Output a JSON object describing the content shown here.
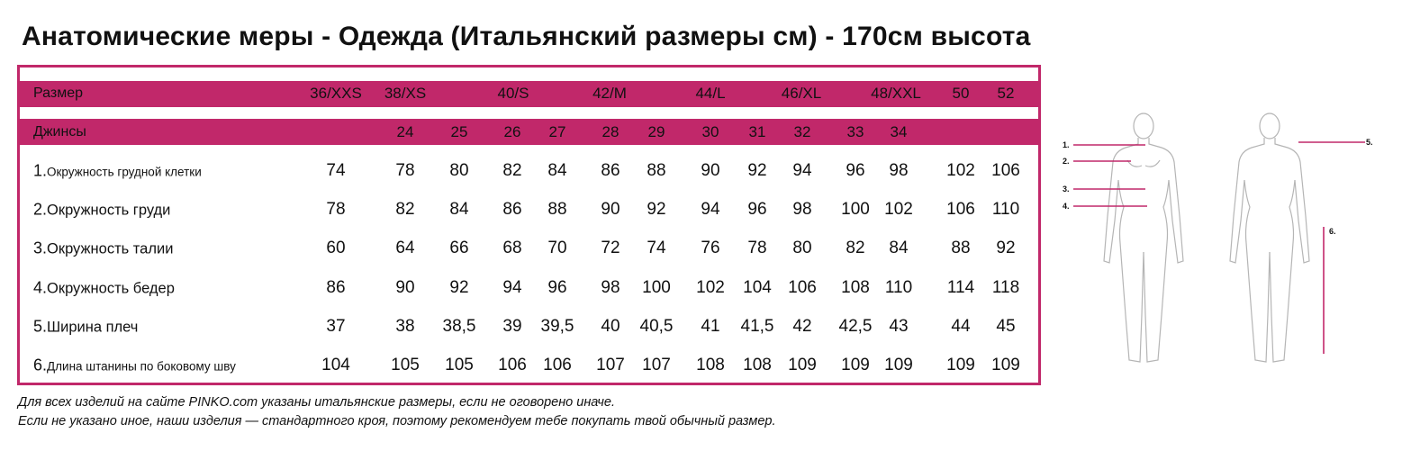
{
  "title": "Анатомические меры - Одежда (Итальянский размеры см) - 170см высота",
  "table": {
    "size_label": "Размер",
    "sizes": [
      "36/XXS",
      "38/XS",
      "40/S",
      "42/M",
      "44/L",
      "46/XL",
      "48/XXL",
      "50",
      "52"
    ],
    "jeans_label": "Джинсы",
    "jeans": [
      "24",
      "25",
      "26",
      "27",
      "28",
      "29",
      "30",
      "31",
      "32",
      "33",
      "34"
    ],
    "rows": [
      {
        "num": "1.",
        "label": "Окружность грудной клетки",
        "small": true,
        "values": [
          "74",
          "78",
          "80",
          "82",
          "84",
          "86",
          "88",
          "90",
          "92",
          "94",
          "96",
          "98",
          "102",
          "106"
        ]
      },
      {
        "num": "2.",
        "label": "Окружность груди",
        "small": false,
        "values": [
          "78",
          "82",
          "84",
          "86",
          "88",
          "90",
          "92",
          "94",
          "96",
          "98",
          "100",
          "102",
          "106",
          "110"
        ]
      },
      {
        "num": "3.",
        "label": "Окружность талии",
        "small": false,
        "values": [
          "60",
          "64",
          "66",
          "68",
          "70",
          "72",
          "74",
          "76",
          "78",
          "80",
          "82",
          "84",
          "88",
          "92"
        ]
      },
      {
        "num": "4.",
        "label": "Окружность бедер",
        "small": false,
        "values": [
          "86",
          "90",
          "92",
          "94",
          "96",
          "98",
          "100",
          "102",
          "104",
          "106",
          "108",
          "110",
          "114",
          "118"
        ]
      },
      {
        "num": "5.",
        "label": "Ширина плеч",
        "small": false,
        "values": [
          "37",
          "38",
          "38,5",
          "39",
          "39,5",
          "40",
          "40,5",
          "41",
          "41,5",
          "42",
          "42,5",
          "43",
          "44",
          "45"
        ]
      },
      {
        "num": "6.",
        "label": "Длина штанины по боковому шву",
        "small": true,
        "values": [
          "104",
          "105",
          "105",
          "106",
          "106",
          "107",
          "107",
          "108",
          "108",
          "109",
          "109",
          "109",
          "109",
          "109"
        ]
      }
    ]
  },
  "notes": [
    "Для всех изделий на сайте PINKO.com указаны итальянские размеры, если не оговорено иначе.",
    "Если не указано иное, наши изделия — стандартного кроя, поэтому рекомендуем тебе покупать твой обычный размер."
  ],
  "figure_markers": [
    "1.",
    "2.",
    "3.",
    "4.",
    "5.",
    "6."
  ],
  "colors": {
    "accent": "#c1286a"
  }
}
